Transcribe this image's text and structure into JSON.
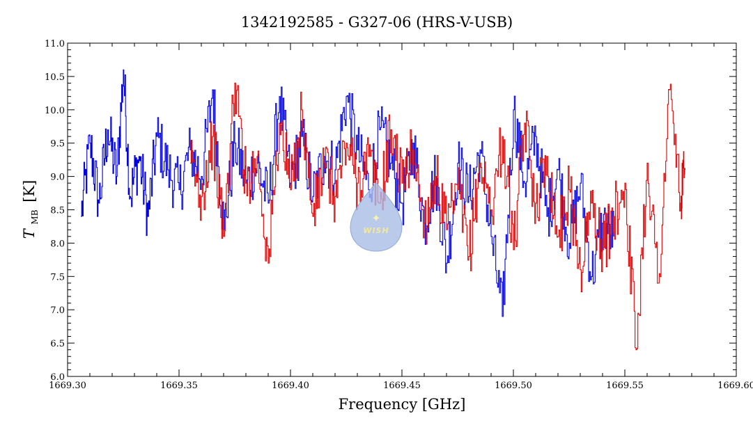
{
  "chart_data": {
    "type": "line",
    "title": "1342192585 - G327-06 (HRS-V-USB)",
    "xlabel": "Frequency [GHz]",
    "ylabel_main": "T",
    "ylabel_sub": "MB",
    "ylabel_unit": "[K]",
    "xlim": [
      1669.3,
      1669.6
    ],
    "ylim": [
      6.0,
      11.0
    ],
    "xticks": [
      "1669.30",
      "1669.35",
      "1669.40",
      "1669.45",
      "1669.50",
      "1669.55",
      "1669.60"
    ],
    "yticks": [
      "6.0",
      "6.5",
      "7.0",
      "7.5",
      "8.0",
      "8.5",
      "9.0",
      "9.5",
      "10.0",
      "10.5",
      "11.0"
    ],
    "grid": false,
    "series": [
      {
        "color": "#0000e0",
        "x": [
          1669.306,
          1669.31,
          1669.314,
          1669.318,
          1669.322,
          1669.325,
          1669.328,
          1669.332,
          1669.336,
          1669.34,
          1669.345,
          1669.35,
          1669.355,
          1669.36,
          1669.365,
          1669.37,
          1669.375,
          1669.38,
          1669.385,
          1669.39,
          1669.395,
          1669.4,
          1669.405,
          1669.41,
          1669.415,
          1669.42,
          1669.425,
          1669.43,
          1669.435,
          1669.44,
          1669.445,
          1669.45,
          1669.455,
          1669.46,
          1669.465,
          1669.47,
          1669.475,
          1669.48,
          1669.485,
          1669.49,
          1669.495,
          1669.5,
          1669.505,
          1669.51,
          1669.515,
          1669.52,
          1669.525,
          1669.53,
          1669.535,
          1669.54,
          1669.545
        ],
        "y": [
          8.4,
          9.5,
          8.6,
          9.7,
          9.0,
          10.6,
          8.7,
          9.3,
          8.4,
          9.6,
          9.1,
          8.8,
          9.4,
          9.0,
          10.3,
          8.2,
          9.5,
          8.9,
          9.2,
          8.6,
          10.2,
          8.9,
          9.6,
          8.7,
          9.3,
          9.1,
          10.2,
          9.4,
          8.8,
          9.7,
          9.2,
          8.6,
          9.5,
          8.3,
          9.0,
          7.7,
          9.2,
          8.7,
          9.4,
          8.1,
          6.9,
          10.0,
          8.9,
          9.6,
          8.4,
          9.1,
          8.0,
          8.9,
          7.5,
          8.3,
          8.1
        ]
      },
      {
        "color": "#e00000",
        "x": [
          1669.355,
          1669.36,
          1669.365,
          1669.37,
          1669.375,
          1669.38,
          1669.385,
          1669.39,
          1669.395,
          1669.4,
          1669.405,
          1669.41,
          1669.415,
          1669.42,
          1669.425,
          1669.43,
          1669.435,
          1669.44,
          1669.445,
          1669.45,
          1669.455,
          1669.46,
          1669.465,
          1669.47,
          1669.475,
          1669.48,
          1669.485,
          1669.49,
          1669.495,
          1669.5,
          1669.505,
          1669.51,
          1669.515,
          1669.52,
          1669.525,
          1669.53,
          1669.535,
          1669.54,
          1669.545,
          1669.55,
          1669.555,
          1669.56,
          1669.565,
          1669.57,
          1669.575,
          1669.577
        ],
        "y": [
          9.2,
          8.7,
          9.6,
          8.1,
          10.4,
          8.9,
          9.3,
          7.7,
          9.8,
          8.8,
          10.0,
          8.4,
          9.2,
          8.7,
          9.5,
          8.9,
          9.3,
          8.6,
          9.7,
          8.9,
          9.4,
          8.3,
          9.0,
          8.2,
          8.8,
          7.8,
          9.2,
          8.5,
          9.6,
          7.9,
          9.8,
          8.6,
          9.3,
          8.1,
          8.8,
          7.6,
          8.6,
          7.9,
          8.4,
          8.9,
          6.4,
          9.2,
          7.4,
          10.3,
          8.6,
          9.1
        ]
      }
    ]
  },
  "logo": {
    "text": "WISH",
    "fill": "#a9bde6"
  }
}
